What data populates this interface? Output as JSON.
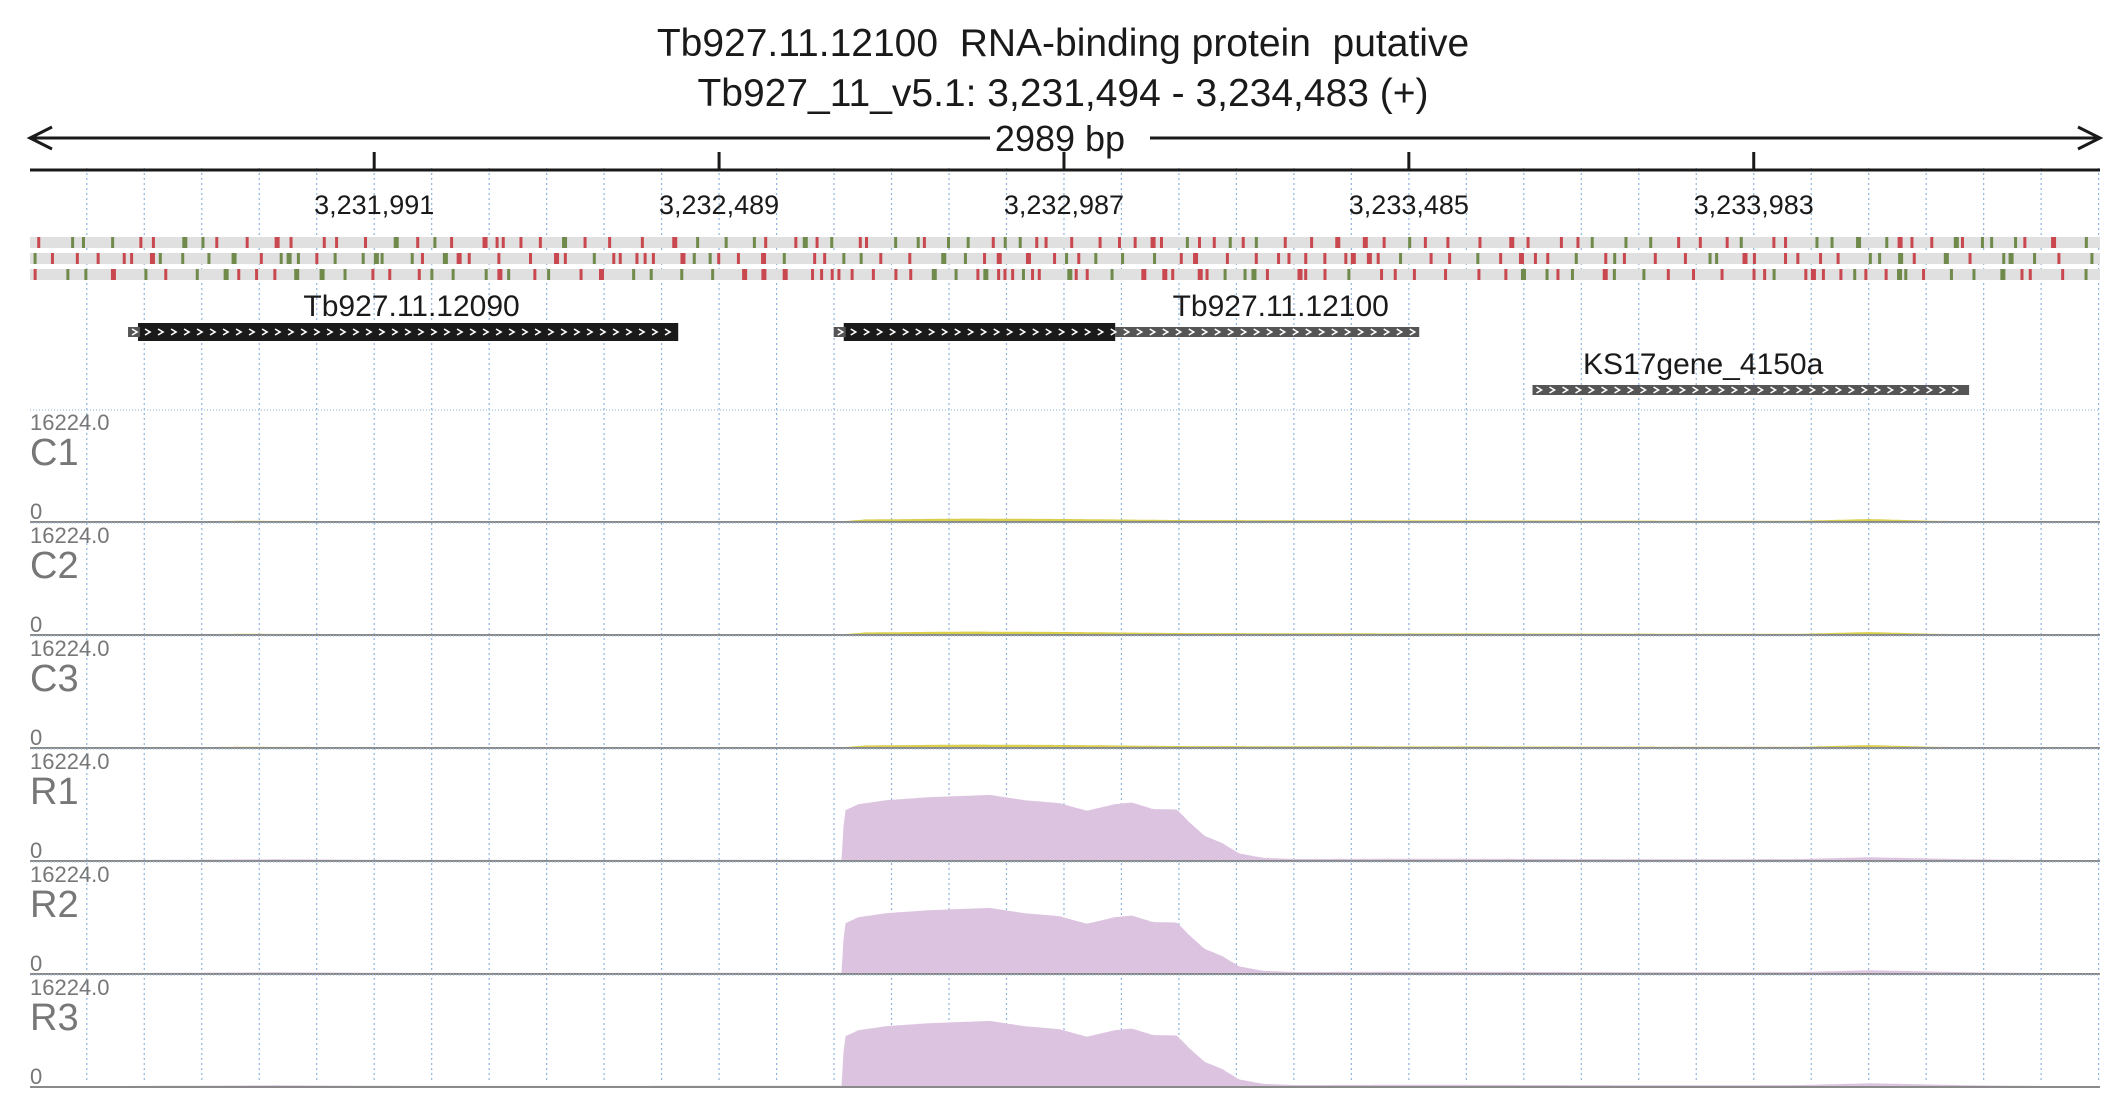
{
  "header": {
    "title_line1": "Tb927.11.12100  RNA-binding protein  putative",
    "title_line2": "Tb927_11_v5.1: 3,231,494 - 3,234,483 (+)",
    "span_label": "2989 bp"
  },
  "colors": {
    "ink": "#1a1a1a",
    "grid": "#8fb4dc",
    "variant_red": "#c9484f",
    "variant_green": "#6f8a4a",
    "variant_track_bg": "#e0e0e0",
    "gene_dark": "#1a1a1a",
    "gene_gray": "#555555",
    "control_fill": "#d9cf4a",
    "rnai_fill": "#dcc3e0",
    "track_label": "#777777"
  },
  "chart_data": {
    "type": "area",
    "region": {
      "chrom": "Tb927_11_v5.1",
      "start": 3231494,
      "end": 3234483,
      "strand": "+"
    },
    "x_ticks": [
      {
        "pos": 3231991,
        "label": "3,231,991"
      },
      {
        "pos": 3232489,
        "label": "3,232,489"
      },
      {
        "pos": 3232987,
        "label": "3,232,987"
      },
      {
        "pos": 3233485,
        "label": "3,233,485"
      },
      {
        "pos": 3233983,
        "label": "3,233,983"
      }
    ],
    "grid": true,
    "grid_interval_bp": 83,
    "variant_rows": 3,
    "genes": [
      {
        "name": "Tb927.11.12090",
        "start": 3231650,
        "end": 3232430,
        "coding_end": 3232430,
        "row": 0,
        "label_pos": 3232045
      },
      {
        "name": "Tb927.11.12100",
        "start": 3232669,
        "end": 3233500,
        "coding_end": 3233061,
        "row": 0,
        "label_pos": 3233300
      },
      {
        "name": "KS17gene_4150a",
        "start": 3233678,
        "end": 3234294,
        "coding_end": 3233678,
        "row": 1,
        "label_pos": 3233910
      }
    ],
    "tracks": [
      {
        "name": "C1",
        "max_label": "16224.0",
        "min_label": "0",
        "ymax": 16224,
        "kind": "control"
      },
      {
        "name": "C2",
        "max_label": "16224.0",
        "min_label": "0",
        "ymax": 16224,
        "kind": "control"
      },
      {
        "name": "C3",
        "max_label": "16224.0",
        "min_label": "0",
        "ymax": 16224,
        "kind": "control"
      },
      {
        "name": "R1",
        "max_label": "16224.0",
        "min_label": "0",
        "ymax": 16224,
        "kind": "rnai"
      },
      {
        "name": "R2",
        "max_label": "16224.0",
        "min_label": "0",
        "ymax": 16224,
        "kind": "rnai"
      },
      {
        "name": "R3",
        "max_label": "16224.0",
        "min_label": "0",
        "ymax": 16224,
        "kind": "rnai"
      }
    ],
    "coverage_profiles": {
      "control": [
        [
          3231494,
          0
        ],
        [
          3231650,
          0
        ],
        [
          3231800,
          120
        ],
        [
          3231950,
          80
        ],
        [
          3232150,
          50
        ],
        [
          3232669,
          60
        ],
        [
          3232700,
          350
        ],
        [
          3232850,
          500
        ],
        [
          3233000,
          420
        ],
        [
          3233150,
          250
        ],
        [
          3233400,
          200
        ],
        [
          3233600,
          180
        ],
        [
          3233800,
          150
        ],
        [
          3234050,
          120
        ],
        [
          3234150,
          420
        ],
        [
          3234250,
          100
        ],
        [
          3234483,
          0
        ]
      ],
      "rnai": [
        [
          3231494,
          0
        ],
        [
          3231650,
          100
        ],
        [
          3231850,
          200
        ],
        [
          3232050,
          100
        ],
        [
          3232668,
          120
        ],
        [
          3232670,
          8500
        ],
        [
          3232690,
          9600
        ],
        [
          3232730,
          10300
        ],
        [
          3232790,
          10800
        ],
        [
          3232880,
          11200
        ],
        [
          3232930,
          10300
        ],
        [
          3232980,
          9800
        ],
        [
          3233020,
          8500
        ],
        [
          3233060,
          9600
        ],
        [
          3233085,
          9900
        ],
        [
          3233115,
          8800
        ],
        [
          3233150,
          8700
        ],
        [
          3233168,
          6500
        ],
        [
          3233190,
          4200
        ],
        [
          3233215,
          3000
        ],
        [
          3233240,
          1200
        ],
        [
          3233275,
          450
        ],
        [
          3233320,
          250
        ],
        [
          3233500,
          300
        ],
        [
          3233700,
          250
        ],
        [
          3233900,
          200
        ],
        [
          3234050,
          250
        ],
        [
          3234150,
          550
        ],
        [
          3234300,
          200
        ],
        [
          3234483,
          0
        ]
      ]
    }
  }
}
